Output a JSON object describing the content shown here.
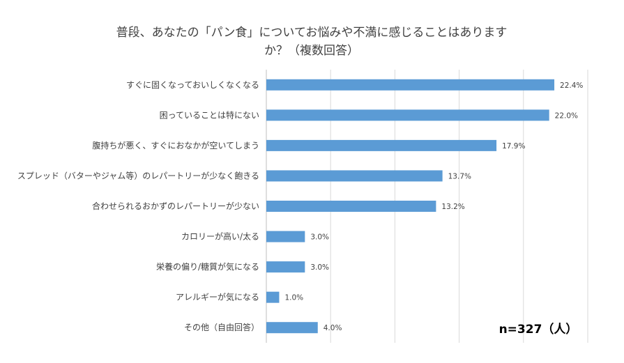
{
  "chart_data": {
    "type": "bar",
    "orientation": "horizontal",
    "title": "普段、あなたの「パン食」についてお悩みや不満に感じることはありますか？（複数回答）",
    "title_lines": [
      "普段、あなたの「パン食」についてお悩みや不満に感じることはあります",
      "か？（複数回答）"
    ],
    "categories": [
      "すぐに固くなっておいしくなくなる",
      "困っていることは特にない",
      "腹持ちが悪く、すぐにおなかが空いてしまう",
      "スプレッド（バターやジャム等）のレパートリーが少なく飽きる",
      "合わせられるおかずのレパートリーが少ない",
      "カロリーが高い/太る",
      "栄養の偏り/糖質が気になる",
      "アレルギーが気になる",
      "その他（自由回答）"
    ],
    "values": [
      22.4,
      22.0,
      17.9,
      13.7,
      13.2,
      3.0,
      3.0,
      1.0,
      4.0
    ],
    "value_labels": [
      "22.4%",
      "22.0%",
      "17.9%",
      "13.7%",
      "13.2%",
      "3.0%",
      "3.0%",
      "1.0%",
      "4.0%"
    ],
    "xlim": [
      0,
      25
    ],
    "grid_step": 5,
    "xlabel": "",
    "ylabel": "",
    "note": "n=327（人）",
    "colors": {
      "bar": "#5b9bd5",
      "grid": "#d9d9d9",
      "text": "#404040"
    }
  }
}
